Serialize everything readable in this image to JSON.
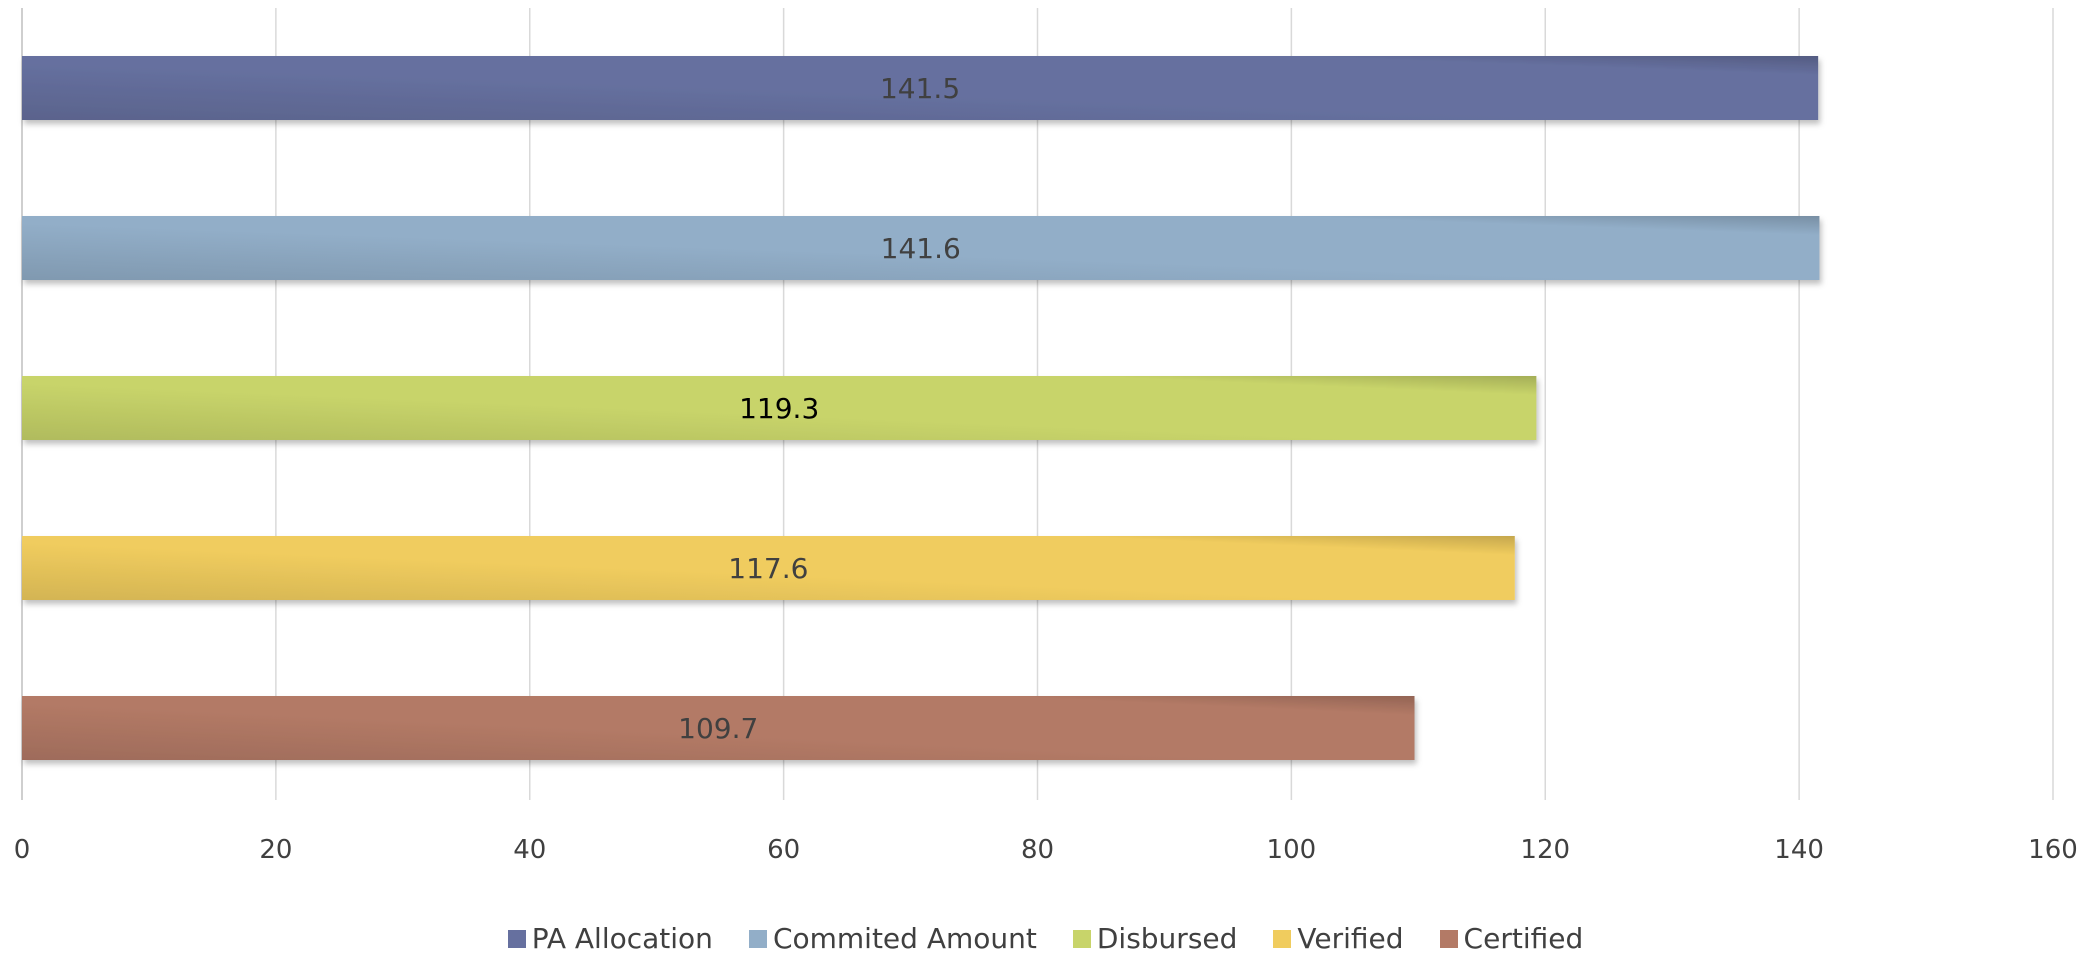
{
  "chart_data": {
    "type": "bar",
    "orientation": "horizontal",
    "xlim": [
      0,
      160
    ],
    "x_ticks": [
      0,
      20,
      40,
      60,
      80,
      100,
      120,
      140,
      160
    ],
    "x_tick_labels": [
      "0",
      "20",
      "40",
      "60",
      "80",
      "100",
      "120",
      "140",
      "160"
    ],
    "grid": true,
    "legend_position": "bottom",
    "series": [
      {
        "name": "PA Allocation",
        "value": 141.5,
        "label": "141.5",
        "color": "#66709f",
        "label_color": "#404040"
      },
      {
        "name": "Commited Amount",
        "value": 141.6,
        "label": "141.6",
        "color": "#92aec8",
        "label_color": "#404040"
      },
      {
        "name": "Disbursed",
        "value": 119.3,
        "label": "119.3",
        "color": "#c8d46a",
        "label_color": "#000000"
      },
      {
        "name": "Verified",
        "value": 117.6,
        "label": "117.6",
        "color": "#f0cc5e",
        "label_color": "#404040"
      },
      {
        "name": "Certified",
        "value": 109.7,
        "label": "109.7",
        "color": "#b37a66",
        "label_color": "#404040"
      }
    ]
  }
}
